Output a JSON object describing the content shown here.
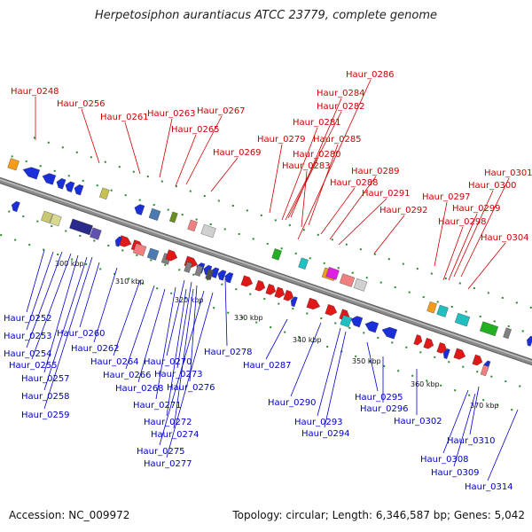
{
  "title": "Herpetosiphon aurantiacus ATCC 23779, complete genome",
  "footer": {
    "accession": "Accession: NC_009972",
    "summary": "Topology: circular; Length: 6,346,587 bp; Genes: 5,042"
  },
  "colors": {
    "top_label": "#cc0000",
    "bottom_label": "#0000cc",
    "backbone": "#8a8a8a",
    "tick_mark": "#1a7a1a"
  },
  "scale_ticks": [
    "300 kbp",
    "310 kbp",
    "320 kbp",
    "330 kbp",
    "340 kbp",
    "350 kbp",
    "360 kbp",
    "370 kbp"
  ],
  "top_labels": [
    "Haur_0248",
    "Haur_0256",
    "Haur_0261",
    "Haur_0263",
    "Haur_0267",
    "Haur_0265",
    "Haur_0269",
    "Haur_0279",
    "Haur_0286",
    "Haur_0284",
    "Haur_0282",
    "Haur_0281",
    "Haur_0285",
    "Haur_0280",
    "Haur_0283",
    "Haur_0289",
    "Haur_0288",
    "Haur_0291",
    "Haur_0292",
    "Haur_0297",
    "Haur_0301",
    "Haur_0300",
    "Haur_0299",
    "Haur_0298",
    "Haur_0304"
  ],
  "bottom_labels": [
    "Haur_0252",
    "Haur_0253",
    "Haur_0254",
    "Haur_0255",
    "Haur_0257",
    "Haur_0258",
    "Haur_0259",
    "Haur_0260",
    "Haur_0262",
    "Haur_0264",
    "Haur_0266",
    "Haur_0268",
    "Haur_0270",
    "Haur_0273",
    "Haur_0276",
    "Haur_0271",
    "Haur_0272",
    "Haur_0274",
    "Haur_0275",
    "Haur_0277",
    "Haur_0278",
    "Haur_0287",
    "Haur_0290",
    "Haur_0293",
    "Haur_0294",
    "Haur_0295",
    "Haur_0296",
    "Haur_0302",
    "Haur_0310",
    "Haur_0308",
    "Haur_0309",
    "Haur_0314"
  ]
}
